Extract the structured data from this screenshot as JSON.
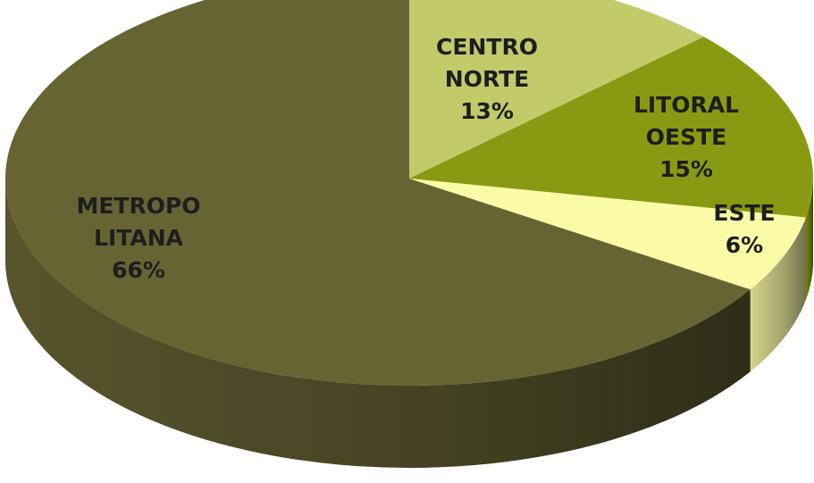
{
  "chart_data": {
    "type": "pie",
    "categories": [
      "CENTRO NORTE",
      "LITORAL OESTE",
      "ESTE",
      "METROPO LITANA"
    ],
    "values": [
      13,
      15,
      6,
      66
    ],
    "value_labels": [
      "13%",
      "15%",
      "6%",
      "66%"
    ],
    "colors": [
      "#c3ca6a",
      "#8a9912",
      "#fbfaa6",
      "#676434"
    ]
  }
}
